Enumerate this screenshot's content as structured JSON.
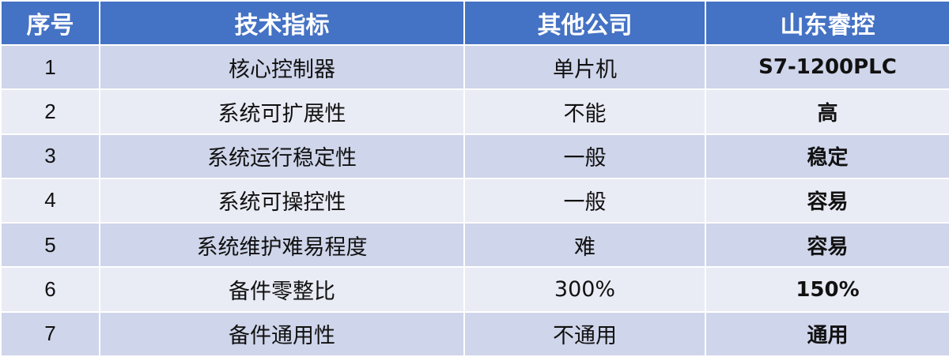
{
  "colors": {
    "header": "#4472C4",
    "row_odd": "#CFD5EA",
    "row_even": "#E9EBF5"
  },
  "headers": [
    "序号",
    "技术指标",
    "其他公司",
    "山东睿控"
  ],
  "rows": [
    [
      "1",
      "核心控制器",
      "单片机",
      "S7-1200PLC"
    ],
    [
      "2",
      "系统可扩展性",
      "不能",
      "高"
    ],
    [
      "3",
      "系统运行稳定性",
      "一般",
      "稳定"
    ],
    [
      "4",
      "系统可操控性",
      "一般",
      "容易"
    ],
    [
      "5",
      "系统维护难易程度",
      "难",
      "容易"
    ],
    [
      "6",
      "备件零整比",
      "300%",
      "150%"
    ],
    [
      "7",
      "备件通用性",
      "不通用",
      "通用"
    ]
  ]
}
